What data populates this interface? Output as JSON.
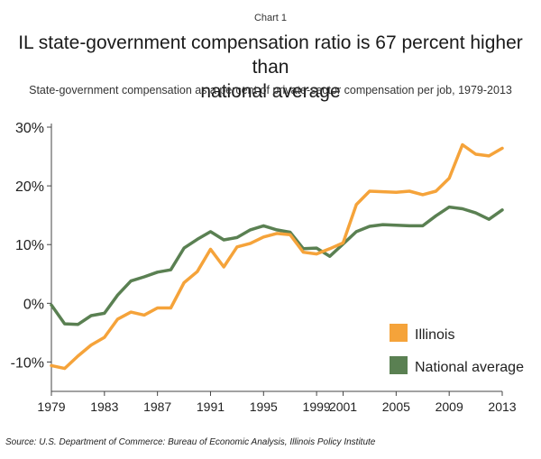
{
  "header": {
    "chart_label": "Chart 1",
    "title_line1": "IL state-government compensation ratio is 67 percent higher than",
    "title_line2": "national average",
    "subtitle": "State-government compensation as a percent of private-sector compensation per job, 1979-2013"
  },
  "source": "Source: U.S. Department of Commerce: Bureau of Economic Analysis, Illinois Policy Institute",
  "chart_data": {
    "type": "line",
    "title": "IL state-government compensation ratio is 67 percent higher than national average",
    "subtitle": "State-government compensation as a percent of private-sector compensation per job, 1979-2013",
    "xlabel": "",
    "ylabel": "",
    "xlim": [
      1979,
      2013
    ],
    "ylim": [
      -15,
      30
    ],
    "y_ticks": [
      -10,
      0,
      10,
      20,
      30
    ],
    "y_tick_labels": [
      "-10%",
      "0%",
      "10%",
      "20%",
      "30%"
    ],
    "x_ticks": [
      1979,
      1983,
      1987,
      1991,
      1995,
      1999,
      2001,
      2005,
      2009,
      2013
    ],
    "x": [
      1979,
      1980,
      1981,
      1982,
      1983,
      1984,
      1985,
      1986,
      1987,
      1988,
      1989,
      1990,
      1991,
      1992,
      1993,
      1994,
      1995,
      1996,
      1997,
      1998,
      1999,
      2000,
      2001,
      2002,
      2003,
      2004,
      2005,
      2006,
      2007,
      2008,
      2009,
      2010,
      2011,
      2012,
      2013
    ],
    "series": [
      {
        "name": "Illinois",
        "color": "#F5A33A",
        "values": [
          -10.6,
          -11.1,
          -9.0,
          -7.1,
          -5.8,
          -2.7,
          -1.5,
          -2.0,
          -0.8,
          -0.8,
          3.5,
          5.4,
          9.2,
          6.2,
          9.6,
          10.2,
          11.3,
          11.9,
          11.7,
          8.7,
          8.4,
          9.3,
          10.3,
          16.8,
          19.1,
          19.0,
          18.9,
          19.1,
          18.5,
          19.1,
          21.3,
          27.0,
          25.4,
          25.1,
          26.4
        ]
      },
      {
        "name": "National average",
        "color": "#5A8052",
        "values": [
          -0.3,
          -3.5,
          -3.6,
          -2.1,
          -1.7,
          1.4,
          3.8,
          4.5,
          5.3,
          5.7,
          9.4,
          10.9,
          12.2,
          10.8,
          11.2,
          12.5,
          13.2,
          12.5,
          12.1,
          9.3,
          9.4,
          8.0,
          10.1,
          12.2,
          13.1,
          13.4,
          13.3,
          13.2,
          13.2,
          14.9,
          16.4,
          16.1,
          15.4,
          14.3,
          15.9
        ]
      }
    ],
    "legend_position": "lower-right",
    "grid": false
  }
}
